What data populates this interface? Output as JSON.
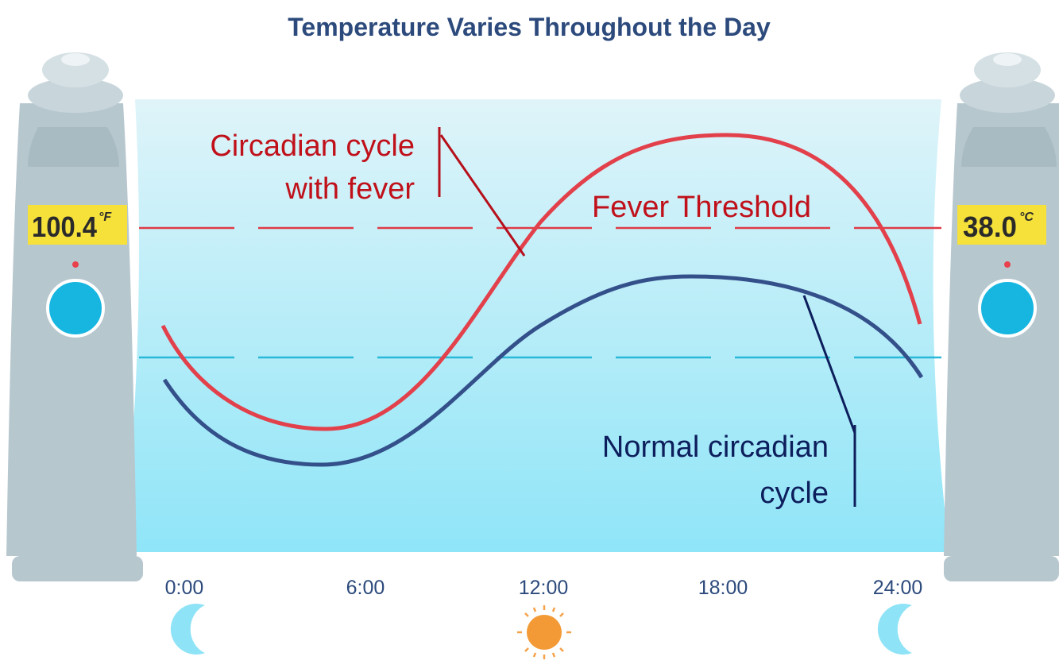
{
  "header": {
    "title": "Temperature Varies Throughout the Day"
  },
  "thermometers": [
    {
      "reading": "100.4",
      "unit": "°F"
    },
    {
      "reading": "38.0",
      "unit": "°C"
    }
  ],
  "labels": {
    "fever_cycle": [
      "Circadian cycle",
      "with fever"
    ],
    "threshold": "Fever Threshold",
    "normal_cycle": [
      "Normal circadian",
      "cycle"
    ]
  },
  "times": [
    "0:00",
    "6:00",
    "12:00",
    "18:00",
    "24:00"
  ]
}
